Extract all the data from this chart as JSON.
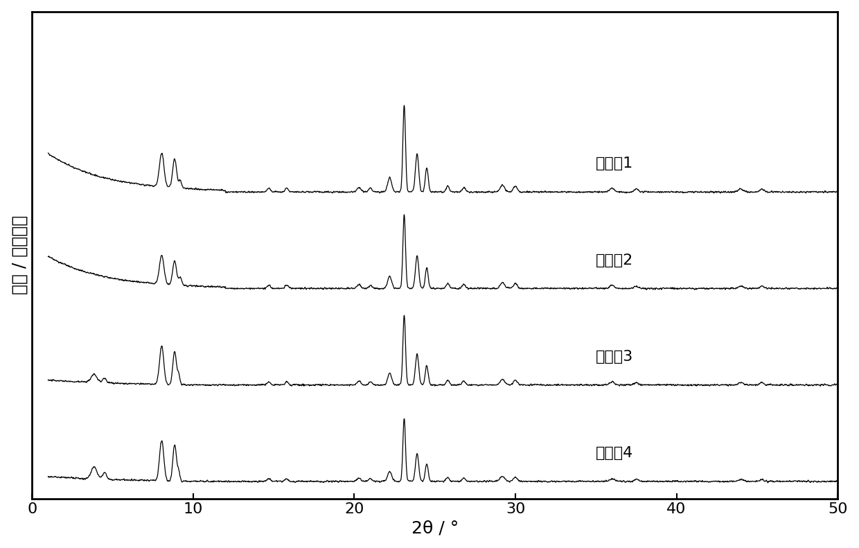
{
  "xlabel": "2θ / °",
  "ylabel": "强度 / 任意单位",
  "xlim": [
    0,
    50
  ],
  "labels": [
    "实施例1",
    "实施例2",
    "实施例3",
    "实施例4"
  ],
  "offsets": [
    3.0,
    2.0,
    1.0,
    0.0
  ],
  "background_color": "#ffffff",
  "line_color": "#000000",
  "label_fontsize": 16,
  "axis_label_fontsize": 18,
  "tick_fontsize": 16
}
